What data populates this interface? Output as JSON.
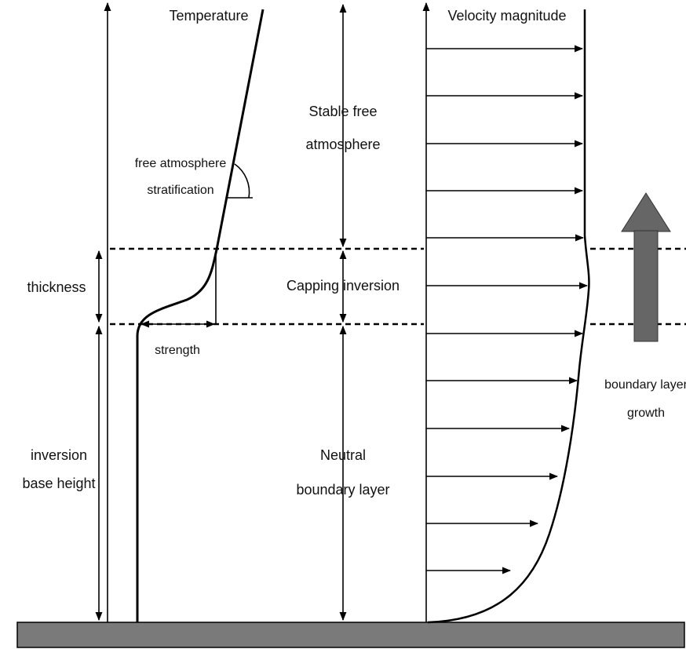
{
  "labels": {
    "temperature": "Temperature",
    "velocity": "Velocity magnitude",
    "stable_free": [
      "Stable free",
      "atmosphere"
    ],
    "stratification": [
      "free atmosphere",
      "stratification"
    ],
    "thickness": "thickness",
    "capping": "Capping inversion",
    "strength": "strength",
    "base_height": [
      "inversion",
      "base height"
    ],
    "neutral": [
      "Neutral",
      "boundary layer"
    ],
    "growth": [
      "boundary layer",
      "growth"
    ]
  }
}
